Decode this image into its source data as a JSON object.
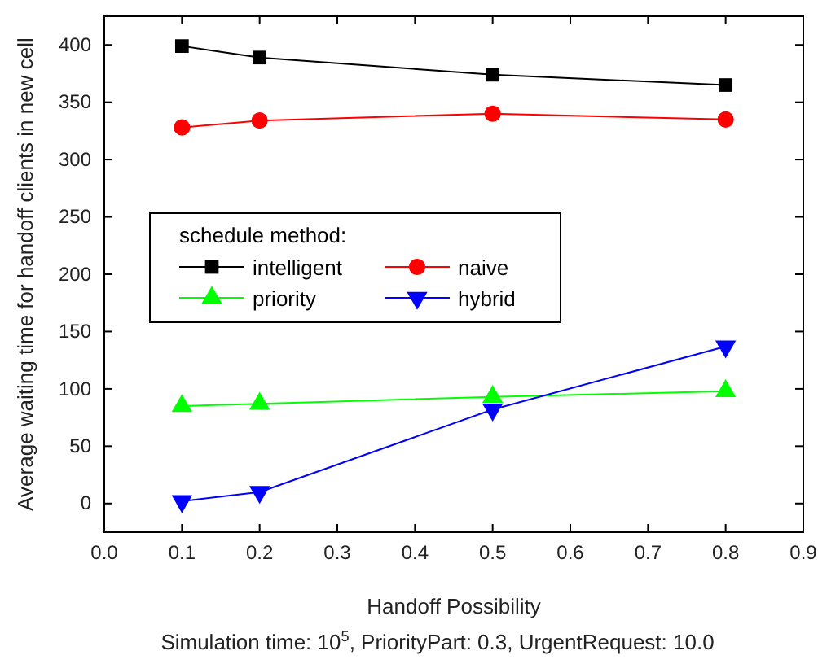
{
  "chart_data": {
    "type": "line",
    "xlabel": "Handoff Possibility",
    "ylabel": "Average waiting time for handoff clients in new cell",
    "legend_title": "schedule method:",
    "legend": "left",
    "grid": false,
    "x": [
      0.1,
      0.2,
      0.5,
      0.8
    ],
    "series": [
      {
        "name": "intelligent",
        "color": "#000000",
        "marker": "square",
        "values": [
          399,
          389,
          374,
          365
        ]
      },
      {
        "name": "naive",
        "color": "#ff0000",
        "marker": "circle",
        "values": [
          328,
          334,
          340,
          335
        ]
      },
      {
        "name": "priority",
        "color": "#00ff00",
        "marker": "triangle",
        "values": [
          85,
          87,
          93,
          98
        ]
      },
      {
        "name": "hybrid",
        "color": "#0000ff",
        "marker": "triangle-down",
        "values": [
          2,
          10,
          82,
          137
        ]
      }
    ],
    "xlim": [
      0,
      0.9
    ],
    "xticks": [
      "0.0",
      0.1,
      0.2,
      0.3,
      0.4,
      0.5,
      0.6,
      0.7,
      0.8,
      0.9
    ],
    "ylim": [
      -25,
      425
    ],
    "yticks": [
      0,
      50,
      100,
      150,
      200,
      250,
      300,
      350,
      400
    ],
    "annotations": [
      "Simulation time: 10$^{5}$, PriorityPart: 0.3, UrgentRequest: 10.0"
    ]
  }
}
